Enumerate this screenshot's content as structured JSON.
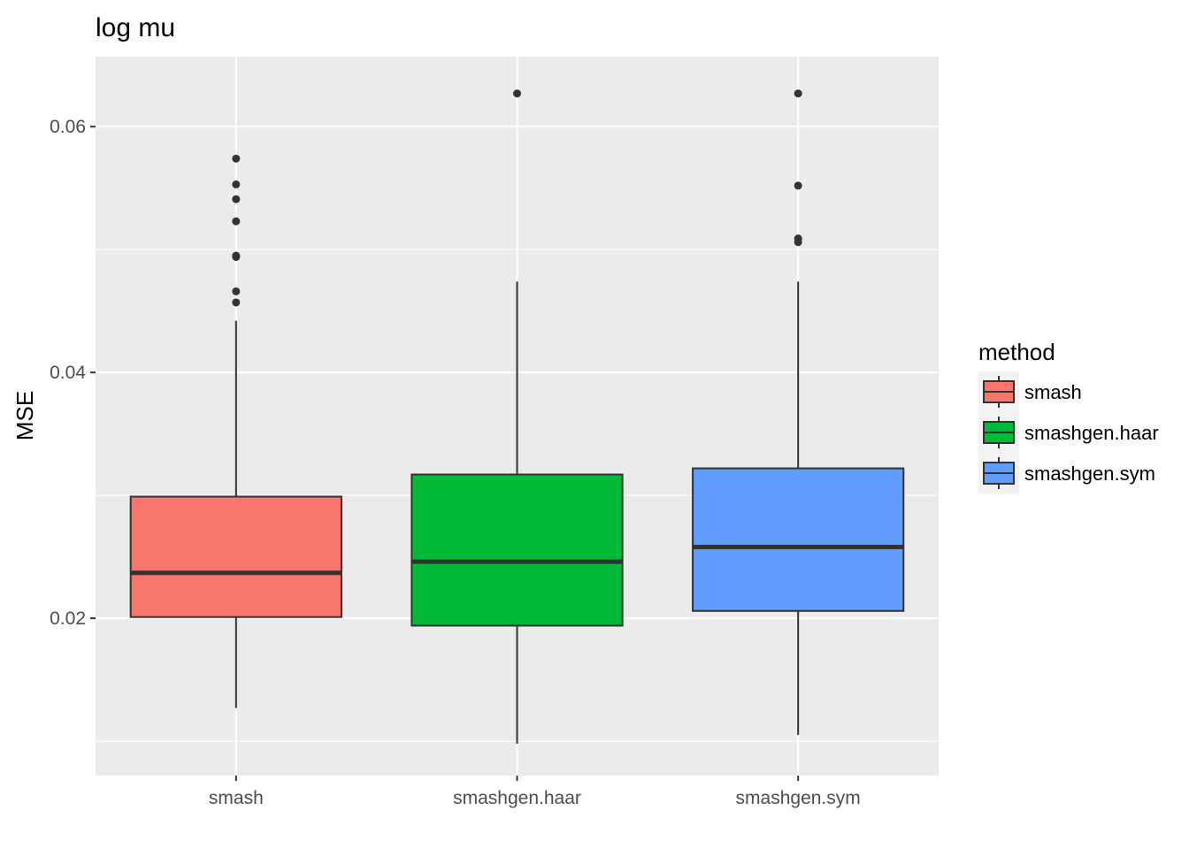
{
  "chart_data": {
    "type": "boxplot",
    "title": "log mu",
    "xlabel": "",
    "ylabel": "MSE",
    "ylim": [
      0.0072,
      0.0657
    ],
    "yticks": [
      0.02,
      0.04,
      0.06
    ],
    "ytick_labels": [
      "0.02",
      "0.04",
      "0.06"
    ],
    "grid": true,
    "legend": {
      "title": "method",
      "position": "right"
    },
    "series": [
      {
        "name": "smash",
        "color": "#F8766D",
        "whisker_low": 0.0127,
        "q1": 0.0201,
        "median": 0.0237,
        "q3": 0.0299,
        "whisker_high": 0.0442,
        "outliers": [
          0.0457,
          0.0466,
          0.0494,
          0.0495,
          0.0523,
          0.0541,
          0.0553,
          0.0574
        ]
      },
      {
        "name": "smashgen.haar",
        "color": "#00BA38",
        "whisker_low": 0.0098,
        "q1": 0.0194,
        "median": 0.0246,
        "q3": 0.0317,
        "whisker_high": 0.0474,
        "outliers": [
          0.0627
        ]
      },
      {
        "name": "smashgen.sym",
        "color": "#619CFF",
        "whisker_low": 0.0105,
        "q1": 0.0206,
        "median": 0.0258,
        "q3": 0.0322,
        "whisker_high": 0.0474,
        "outliers": [
          0.0506,
          0.0509,
          0.0552,
          0.0627
        ]
      }
    ]
  }
}
